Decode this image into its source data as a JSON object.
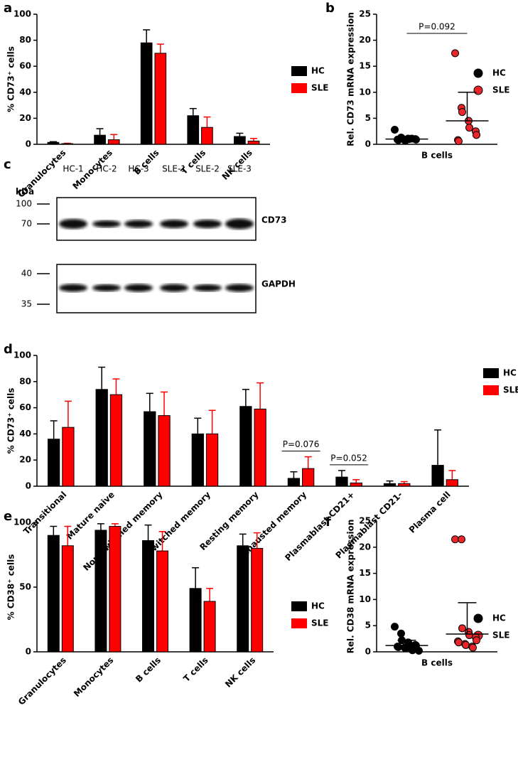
{
  "chart_data": [
    {
      "panel": "a",
      "type": "bar",
      "ylabel": "% CD73⁺ cells",
      "categories": [
        "Granulocytes",
        "Monocytes",
        "B cells",
        "T cells",
        "NK cells"
      ],
      "series": [
        {
          "name": "HC",
          "color": "#000000",
          "values": [
            1.5,
            7,
            78,
            22,
            6
          ],
          "errors": [
            0.5,
            5,
            10,
            5.5,
            2.5
          ]
        },
        {
          "name": "SLE",
          "color": "#ff0000",
          "values": [
            0.5,
            3.5,
            70,
            13,
            2.5
          ],
          "errors": [
            0.3,
            4,
            7,
            8,
            2
          ]
        }
      ],
      "ylim": [
        0,
        100
      ],
      "yticks": [
        0,
        20,
        40,
        60,
        80,
        100
      ],
      "legend": "right"
    },
    {
      "panel": "b",
      "type": "dot",
      "ylabel": "Rel. CD73 mRNA expression",
      "xlabel": "B cells",
      "series": [
        {
          "name": "HC",
          "color": "#000000",
          "values": [
            2.8,
            1.3,
            1.2,
            1.1,
            1.0,
            1.0,
            0.9,
            0.9,
            0.8,
            0.8,
            0.7,
            1.1
          ],
          "mean": 1.0,
          "error": 0.4
        },
        {
          "name": "SLE",
          "color": "#e8262b",
          "values": [
            17.5,
            7.0,
            6.2,
            4.5,
            3.2,
            2.5,
            1.8,
            0.8,
            0.6
          ],
          "mean": 4.5,
          "error": 5.5
        }
      ],
      "annotations": [
        {
          "text": "P=0.092"
        }
      ],
      "ylim": [
        0,
        25
      ],
      "yticks": [
        0,
        5,
        10,
        15,
        20,
        25
      ],
      "legend": "right"
    },
    {
      "panel": "d",
      "type": "bar",
      "ylabel": "% CD73⁺ cells",
      "categories": [
        "Transitional",
        "Mature naive",
        "Non-switched memory",
        "Switched memory",
        "Resting memory",
        "Exhausted memory",
        "Plasmablast CD21+",
        "Plasmablast CD21-",
        "Plasma cell"
      ],
      "series": [
        {
          "name": "HC",
          "color": "#000000",
          "values": [
            36,
            74,
            57,
            40,
            61,
            6,
            7,
            2,
            16
          ],
          "errors": [
            14,
            17,
            14,
            12,
            13,
            5,
            5,
            2,
            27
          ]
        },
        {
          "name": "SLE",
          "color": "#ff0000",
          "values": [
            45,
            70,
            54,
            40,
            59,
            13.5,
            2.5,
            2,
            5
          ],
          "errors": [
            20,
            12,
            18,
            18,
            20,
            9,
            2.5,
            1.5,
            7
          ]
        }
      ],
      "annotations": [
        {
          "text": "P=0.076",
          "category": "Exhausted memory"
        },
        {
          "text": "P=0.052",
          "category": "Plasmablast CD21+"
        }
      ],
      "ylim": [
        0,
        100
      ],
      "yticks": [
        0,
        20,
        40,
        60,
        80,
        100
      ],
      "legend": "right"
    },
    {
      "panel": "e",
      "type": "bar",
      "ylabel": "% CD38⁺ cells",
      "categories": [
        "Granulocytes",
        "Monocytes",
        "B cells",
        "T cells",
        "NK cells"
      ],
      "series": [
        {
          "name": "HC",
          "color": "#000000",
          "values": [
            90,
            94,
            86,
            49,
            82
          ],
          "errors": [
            7,
            5,
            12,
            16,
            9
          ]
        },
        {
          "name": "SLE",
          "color": "#ff0000",
          "values": [
            82,
            97,
            78,
            39,
            80
          ],
          "errors": [
            15,
            2,
            15,
            10,
            12
          ]
        }
      ],
      "ylim": [
        0,
        100
      ],
      "yticks": [
        0,
        50,
        100
      ],
      "legend": "right"
    },
    {
      "panel": "f",
      "type": "dot",
      "ylabel": "Rel. CD38 mRNA expression",
      "xlabel": "B cells",
      "series": [
        {
          "name": "HC",
          "color": "#000000",
          "values": [
            4.8,
            3.5,
            2.2,
            1.8,
            1.5,
            1.3,
            1.2,
            1.0,
            0.9,
            0.8,
            0.7,
            0.5,
            0.3,
            0.2
          ],
          "mean": 1.2,
          "error": 1.0
        },
        {
          "name": "SLE",
          "color": "#e8262b",
          "values": [
            21.5,
            21.5,
            4.5,
            3.8,
            3.2,
            2.8,
            2.2,
            2.0,
            1.8,
            1.5,
            1.3,
            1.0,
            0.8
          ],
          "mean": 3.4,
          "error": 6.0
        }
      ],
      "ylim": [
        0,
        25
      ],
      "yticks": [
        0,
        5,
        10,
        15,
        20,
        25
      ],
      "legend": "right"
    }
  ],
  "blot": {
    "panel": "c",
    "lanes": [
      "HC-1",
      "HC-2",
      "HC-3",
      "SLE-1",
      "SLE-2",
      "SLE-3"
    ],
    "unit": "kDa",
    "blots": [
      {
        "label": "CD73",
        "markers": [
          "100",
          "70"
        ]
      },
      {
        "label": "GAPDH",
        "markers": [
          "40",
          "35"
        ]
      }
    ]
  }
}
